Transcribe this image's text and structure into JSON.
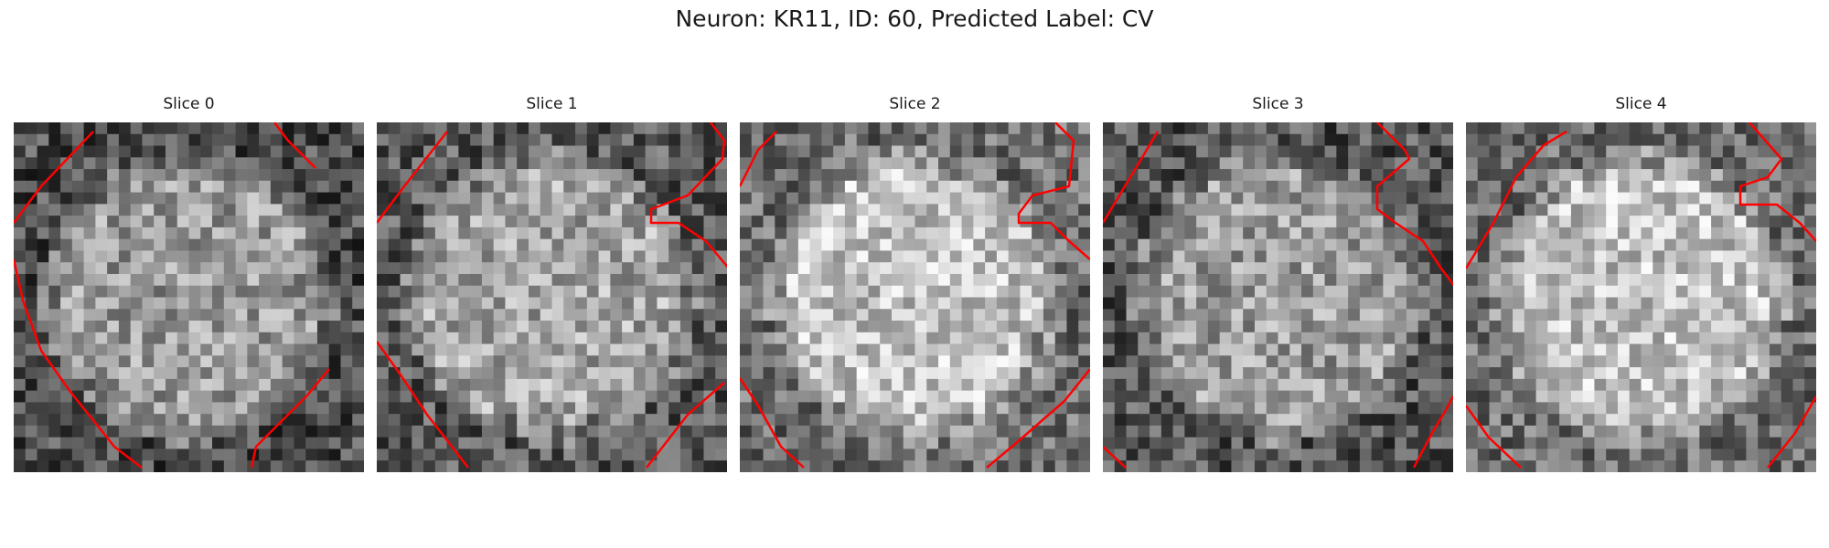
{
  "figure": {
    "title": "Neuron: KR11, ID: 60, Predicted Label: CV"
  },
  "panels": [
    {
      "title": "Slice 0",
      "seed": 11,
      "base": 0.55,
      "inner": 0.05,
      "outline_color": "#ff0000"
    },
    {
      "title": "Slice 1",
      "seed": 23,
      "base": 0.6,
      "inner": 0.05,
      "outline_color": "#ff0000"
    },
    {
      "title": "Slice 2",
      "seed": 37,
      "base": 0.68,
      "inner": 0.08,
      "outline_color": "#ff0000"
    },
    {
      "title": "Slice 3",
      "seed": 41,
      "base": 0.58,
      "inner": 0.03,
      "outline_color": "#ff0000"
    },
    {
      "title": "Slice 4",
      "seed": 53,
      "base": 0.68,
      "inner": 0.08,
      "outline_color": "#ff0000"
    }
  ]
}
